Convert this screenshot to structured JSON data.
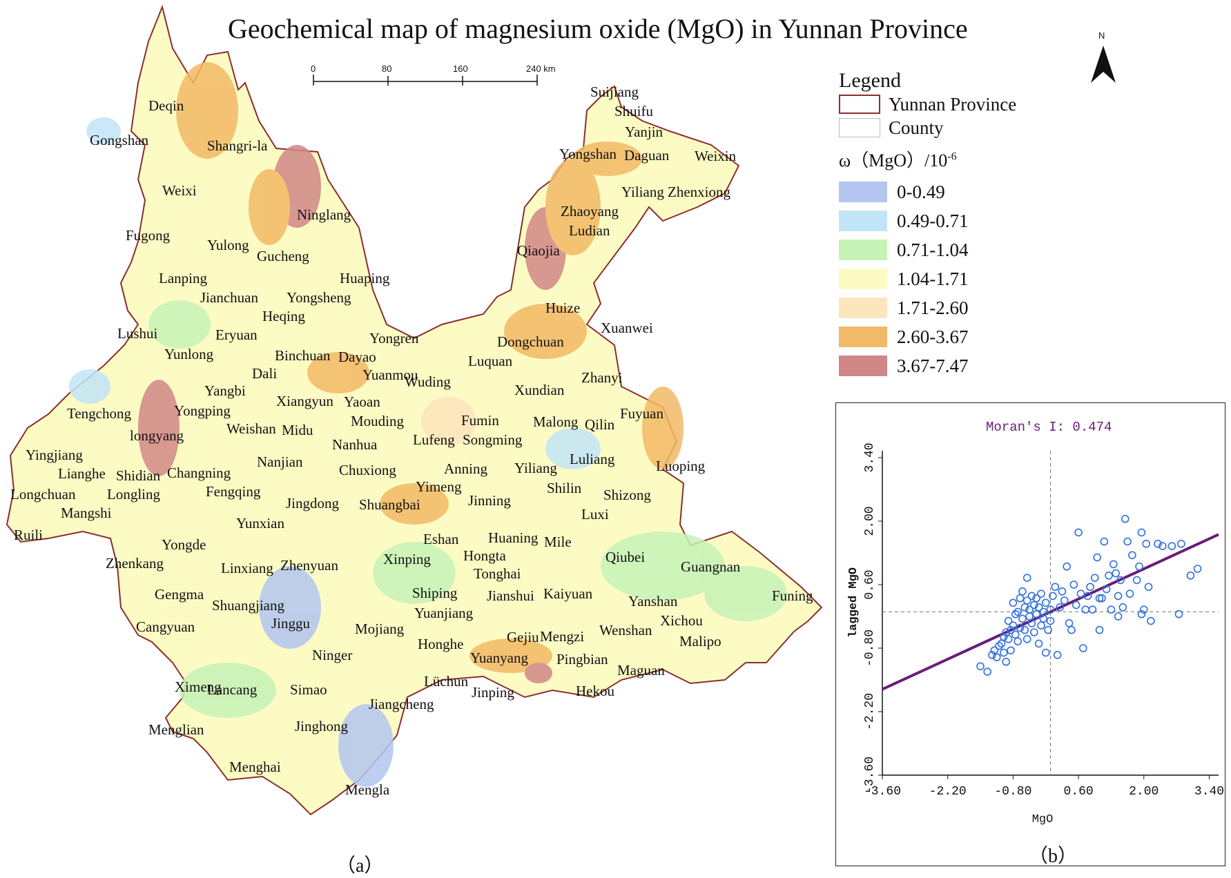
{
  "title": "Geochemical map of magnesium oxide (MgO) in Yunnan Province",
  "north_arrow": {
    "label": "N"
  },
  "scale_bar": {
    "ticks": [
      "0",
      "80",
      "160",
      "240 km"
    ]
  },
  "legend": {
    "title": "Legend",
    "boundary_items": [
      {
        "label": "Yunnan Province",
        "stroke": "#8b2e2e"
      },
      {
        "label": "County",
        "stroke": "#bbbbbb"
      }
    ],
    "variable_label": "ω（MgO）/10",
    "variable_exp": "-6",
    "classes": [
      {
        "label": "0-0.49",
        "color": "#b3c6f0"
      },
      {
        "label": "0.49-0.71",
        "color": "#c2e4f7"
      },
      {
        "label": "0.71-1.04",
        "color": "#c6f2b8"
      },
      {
        "label": "1.04-1.71",
        "color": "#fdfbc4"
      },
      {
        "label": "1.71-2.60",
        "color": "#fde5bd"
      },
      {
        "label": "2.60-3.67",
        "color": "#f2b966"
      },
      {
        "label": "3.67-7.47",
        "color": "#d18787"
      }
    ]
  },
  "places": [
    "Deqin",
    "Gongshan",
    "Shangri-la",
    "Weixi",
    "Ninglang",
    "Fugong",
    "Yulong",
    "Gucheng",
    "Lanping",
    "Huaping",
    "Jianchuan",
    "Yongsheng",
    "Heqing",
    "Lushui",
    "Eryuan",
    "Yunlong",
    "Binchuan",
    "Dayao",
    "Yongren",
    "Dali",
    "Yuanmou",
    "Wuding",
    "Luquan",
    "Dongchuan",
    "Xuanwei",
    "Zhanyi",
    "Xundian",
    "Yangbi",
    "Xiangyun",
    "Yaoan",
    "Tengchong",
    "Yongping",
    "Weishan",
    "Midu",
    "Mouding",
    "Fumin",
    "Malong",
    "Qilin",
    "Fuyuan",
    "longyang",
    "Nanhua",
    "Lufeng",
    "Songming",
    "Yingjiang",
    "Lianghe",
    "Shidian",
    "Changning",
    "Nanjian",
    "Chuxiong",
    "Anning",
    "Yiliang",
    "Luliang",
    "Luoping",
    "Longchuan",
    "Longling",
    "Mangshi",
    "Fengqing",
    "Jingdong",
    "Yimeng",
    "Shuangbai",
    "Jinning",
    "Shilin",
    "Shizong",
    "Ruili",
    "Yunxian",
    "Luxi",
    "Yongde",
    "Eshan",
    "Huaning",
    "Mile",
    "Hongta",
    "Zhenkang",
    "Linxiang",
    "Zhenyuan",
    "Xinping",
    "Tonghai",
    "Qiubei",
    "Guangnan",
    "Gengma",
    "Shuangjiang",
    "Shiping",
    "Jianshui",
    "Kaiyuan",
    "Yanshan",
    "Funing",
    "Yuanjiang",
    "Cangyuan",
    "Jinggu",
    "Mojiang",
    "Honghe",
    "Gejiu",
    "Mengzi",
    "Wenshan",
    "Xichou",
    "Malipo",
    "Ninger",
    "Yuanyang",
    "Pingbian",
    "Maguan",
    "Ximeng",
    "Lancang",
    "Simao",
    "Lüchun",
    "Jinping",
    "Hekou",
    "Jiangcheng",
    "Menglian",
    "Jinghong",
    "Menghai",
    "Mengla",
    "Suijiang",
    "Shuifu",
    "Yanjin",
    "Yongshan",
    "Daguan",
    "Weixin",
    "Yiliang",
    "Zhenxiong",
    "Zhaoyang",
    "Ludian",
    "Qiaojia",
    "Huize"
  ],
  "panel_labels": {
    "a": "（a）",
    "b": "（b）"
  },
  "chart_data": {
    "type": "scatter",
    "title": "Moran's I: 0.474",
    "xlabel": "MgO",
    "ylabel": "lagged MgO",
    "xlim": [
      -3.6,
      3.6
    ],
    "ylim": [
      -3.6,
      3.4
    ],
    "x_ticks": [
      "-3.60",
      "-2.20",
      "-0.80",
      "0.60",
      "2.00",
      "3.40"
    ],
    "y_ticks": [
      "-3.60",
      "-2.20",
      "-0.80",
      "0.60",
      "2.00",
      "3.40"
    ],
    "regression_line": {
      "slope": 0.474,
      "intercept": 0.0
    },
    "point_color": "#2f6fe0",
    "line_color": "#6a1b7a",
    "points": [
      [
        -1.5,
        -1.2
      ],
      [
        -1.35,
        -1.32
      ],
      [
        -1.25,
        -0.95
      ],
      [
        -1.2,
        -0.85
      ],
      [
        -1.15,
        -1.0
      ],
      [
        -1.1,
        -0.75
      ],
      [
        -1.05,
        -0.7
      ],
      [
        -1.0,
        -0.55
      ],
      [
        -1.0,
        -0.9
      ],
      [
        -0.95,
        -0.45
      ],
      [
        -0.95,
        -1.1
      ],
      [
        -0.9,
        -0.6
      ],
      [
        -0.9,
        -0.2
      ],
      [
        -0.85,
        -0.4
      ],
      [
        -0.85,
        -0.85
      ],
      [
        -0.8,
        -0.3
      ],
      [
        -0.8,
        0.2
      ],
      [
        -0.75,
        -0.5
      ],
      [
        -0.75,
        -0.05
      ],
      [
        -0.7,
        0.0
      ],
      [
        -0.7,
        -0.65
      ],
      [
        -0.65,
        0.3
      ],
      [
        -0.65,
        -0.35
      ],
      [
        -0.6,
        -0.15
      ],
      [
        -0.6,
        0.45
      ],
      [
        -0.55,
        -0.4
      ],
      [
        -0.55,
        0.1
      ],
      [
        -0.5,
        -0.6
      ],
      [
        -0.5,
        0.25
      ],
      [
        -0.5,
        0.75
      ],
      [
        -0.45,
        -0.1
      ],
      [
        -0.45,
        0.05
      ],
      [
        -0.4,
        -0.25
      ],
      [
        -0.4,
        0.35
      ],
      [
        -0.35,
        -0.45
      ],
      [
        -0.35,
        0.15
      ],
      [
        -0.3,
        0.3
      ],
      [
        -0.3,
        -0.05
      ],
      [
        -0.25,
        0.1
      ],
      [
        -0.25,
        -0.7
      ],
      [
        -0.2,
        -0.3
      ],
      [
        -0.2,
        0.4
      ],
      [
        -0.15,
        0.0
      ],
      [
        -0.15,
        -0.15
      ],
      [
        -0.1,
        0.2
      ],
      [
        -0.1,
        -0.9
      ],
      [
        -0.05,
        -0.4
      ],
      [
        0.0,
        0.05
      ],
      [
        0.0,
        -0.2
      ],
      [
        0.05,
        0.35
      ],
      [
        0.1,
        0.55
      ],
      [
        0.15,
        -0.95
      ],
      [
        0.2,
        0.1
      ],
      [
        0.25,
        0.45
      ],
      [
        0.3,
        0.25
      ],
      [
        0.35,
        1.0
      ],
      [
        0.4,
        -0.25
      ],
      [
        0.45,
        -0.4
      ],
      [
        0.5,
        0.6
      ],
      [
        0.55,
        0.15
      ],
      [
        0.6,
        1.75
      ],
      [
        0.65,
        0.4
      ],
      [
        0.7,
        -0.8
      ],
      [
        0.75,
        0.05
      ],
      [
        0.8,
        0.35
      ],
      [
        0.85,
        0.55
      ],
      [
        0.9,
        0.05
      ],
      [
        0.95,
        0.75
      ],
      [
        1.0,
        1.2
      ],
      [
        1.05,
        -0.4
      ],
      [
        1.1,
        0.3
      ],
      [
        1.15,
        1.55
      ],
      [
        1.2,
        0.5
      ],
      [
        1.25,
        0.8
      ],
      [
        1.3,
        0.05
      ],
      [
        1.35,
        1.05
      ],
      [
        1.4,
        0.85
      ],
      [
        1.45,
        0.35
      ],
      [
        1.5,
        0.7
      ],
      [
        1.55,
        0.1
      ],
      [
        1.6,
        2.05
      ],
      [
        1.65,
        1.55
      ],
      [
        1.7,
        0.4
      ],
      [
        1.75,
        1.25
      ],
      [
        1.85,
        0.7
      ],
      [
        1.9,
        1.0
      ],
      [
        1.95,
        1.75
      ],
      [
        2.0,
        0.05
      ],
      [
        2.05,
        1.5
      ],
      [
        2.1,
        0.55
      ],
      [
        2.15,
        -0.2
      ],
      [
        2.3,
        1.5
      ],
      [
        2.4,
        1.45
      ],
      [
        2.6,
        1.45
      ],
      [
        2.75,
        -0.05
      ],
      [
        2.8,
        1.5
      ],
      [
        3.0,
        0.8
      ],
      [
        3.15,
        0.95
      ],
      [
        1.05,
        0.3
      ],
      [
        1.95,
        -0.05
      ],
      [
        1.45,
        -0.1
      ]
    ]
  }
}
